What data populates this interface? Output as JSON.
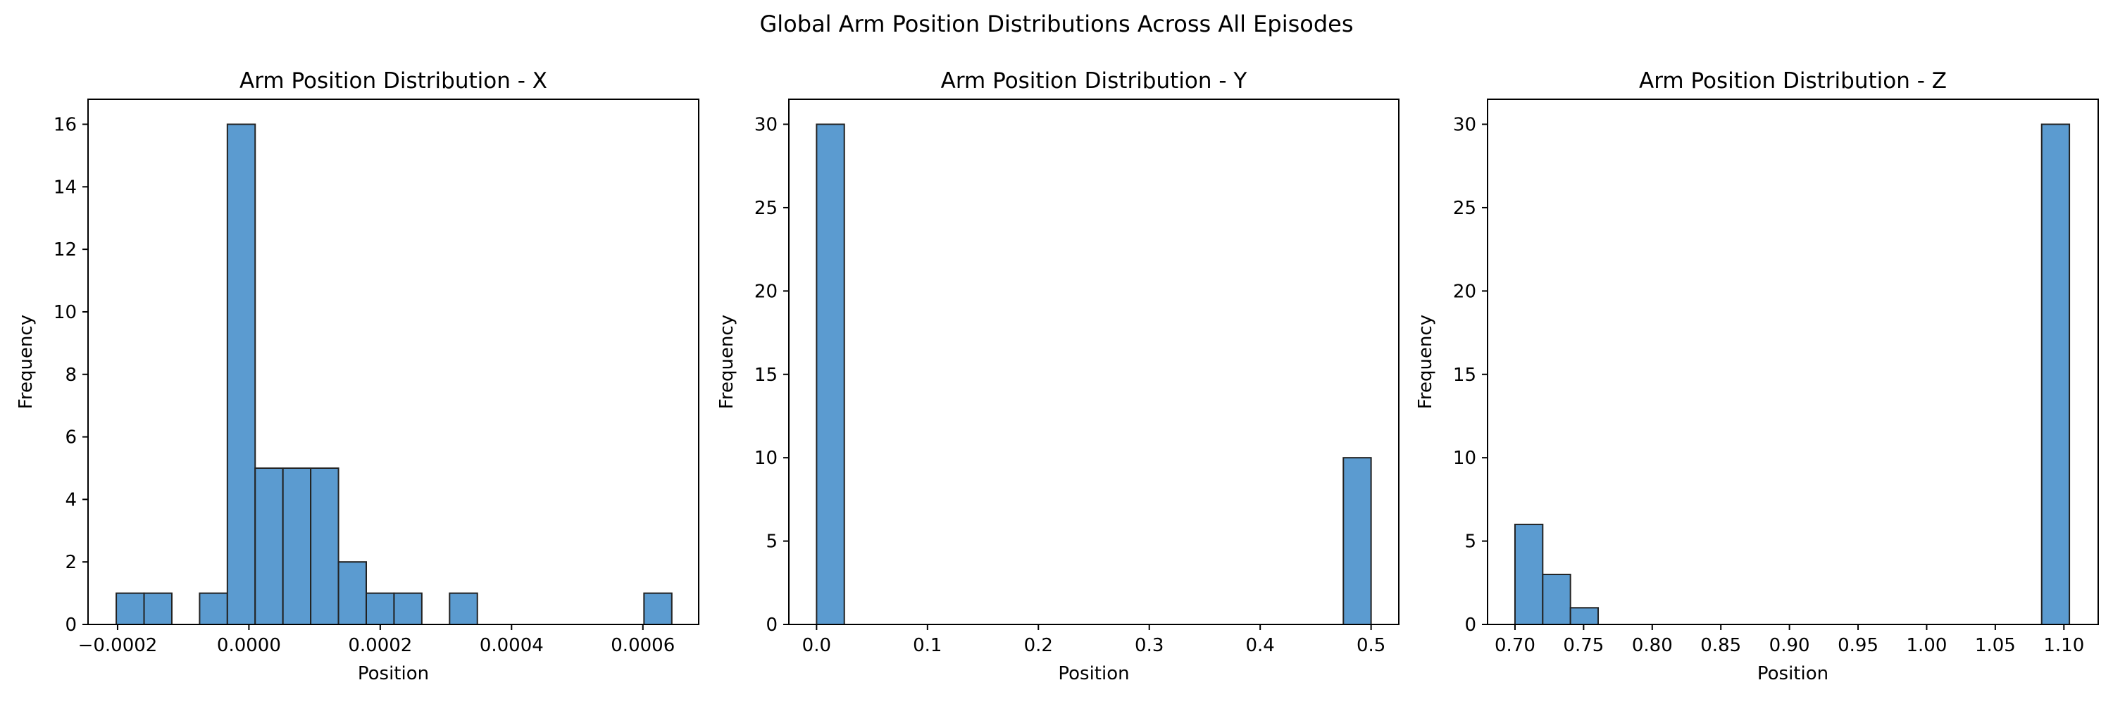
{
  "figure": {
    "suptitle": "Global Arm Position Distributions Across All Episodes"
  },
  "colors": {
    "bar_fill": "#5b9bd0",
    "bar_edge": "#222222",
    "axis": "#000000"
  },
  "chart_data": [
    {
      "type": "bar",
      "subtype": "histogram",
      "title": "Arm Position Distribution - X",
      "xlabel": "Position",
      "ylabel": "Frequency",
      "xlim": [
        -0.000245,
        0.000685
      ],
      "ylim": [
        0,
        16.8
      ],
      "xticks": [
        -0.0002,
        0.0,
        0.0002,
        0.0004,
        0.0006
      ],
      "xtick_labels": [
        "−0.0002",
        "0.0000",
        "0.0002",
        "0.0004",
        "0.0006"
      ],
      "yticks": [
        0,
        2,
        4,
        6,
        8,
        10,
        12,
        14,
        16
      ],
      "ytick_labels": [
        "0",
        "2",
        "4",
        "6",
        "8",
        "10",
        "12",
        "14",
        "16"
      ],
      "bin_edges": [
        -0.000202,
        -0.0001597,
        -0.0001174,
        -7.51e-05,
        -3.28e-05,
        9.5e-06,
        5.18e-05,
        9.41e-05,
        0.0001364,
        0.0001787,
        0.000221,
        0.0002633,
        0.0003056,
        0.0003479,
        0.0003902,
        0.0004325,
        0.0004748,
        0.0005171,
        0.0005594,
        0.0006017,
        0.000644
      ],
      "values": [
        1,
        1,
        0,
        1,
        16,
        5,
        5,
        5,
        2,
        1,
        1,
        0,
        1,
        0,
        0,
        0,
        0,
        0,
        0,
        1
      ]
    },
    {
      "type": "bar",
      "subtype": "histogram",
      "title": "Arm Position Distribution - Y",
      "xlabel": "Position",
      "ylabel": "Frequency",
      "xlim": [
        -0.025,
        0.525
      ],
      "ylim": [
        0,
        31.5
      ],
      "xticks": [
        0.0,
        0.1,
        0.2,
        0.3,
        0.4,
        0.5
      ],
      "xtick_labels": [
        "0.0",
        "0.1",
        "0.2",
        "0.3",
        "0.4",
        "0.5"
      ],
      "yticks": [
        0,
        5,
        10,
        15,
        20,
        25,
        30
      ],
      "ytick_labels": [
        "0",
        "5",
        "10",
        "15",
        "20",
        "25",
        "30"
      ],
      "bin_edges": [
        0.0,
        0.025,
        0.05,
        0.075,
        0.1,
        0.125,
        0.15,
        0.175,
        0.2,
        0.225,
        0.25,
        0.275,
        0.3,
        0.325,
        0.35,
        0.375,
        0.4,
        0.425,
        0.45,
        0.475,
        0.5
      ],
      "values": [
        30,
        0,
        0,
        0,
        0,
        0,
        0,
        0,
        0,
        0,
        0,
        0,
        0,
        0,
        0,
        0,
        0,
        0,
        0,
        10
      ]
    },
    {
      "type": "bar",
      "subtype": "histogram",
      "title": "Arm Position Distribution - Z",
      "xlabel": "Position",
      "ylabel": "Frequency",
      "xlim": [
        0.68,
        1.125
      ],
      "ylim": [
        0,
        31.5
      ],
      "xticks": [
        0.7,
        0.75,
        0.8,
        0.85,
        0.9,
        0.95,
        1.0,
        1.05,
        1.1
      ],
      "xtick_labels": [
        "0.70",
        "0.75",
        "0.80",
        "0.85",
        "0.90",
        "0.95",
        "1.00",
        "1.05",
        "1.10"
      ],
      "yticks": [
        0,
        5,
        10,
        15,
        20,
        25,
        30
      ],
      "ytick_labels": [
        "0",
        "5",
        "10",
        "15",
        "20",
        "25",
        "30"
      ],
      "bin_edges": [
        0.7,
        0.7202,
        0.7404,
        0.7606,
        0.7808,
        0.801,
        0.8212,
        0.8414,
        0.8616,
        0.8818,
        0.902,
        0.9222,
        0.9424,
        0.9626,
        0.9828,
        1.003,
        1.0232,
        1.0434,
        1.0636,
        1.0838,
        1.104
      ],
      "values": [
        6,
        3,
        1,
        0,
        0,
        0,
        0,
        0,
        0,
        0,
        0,
        0,
        0,
        0,
        0,
        0,
        0,
        0,
        0,
        30
      ]
    }
  ]
}
